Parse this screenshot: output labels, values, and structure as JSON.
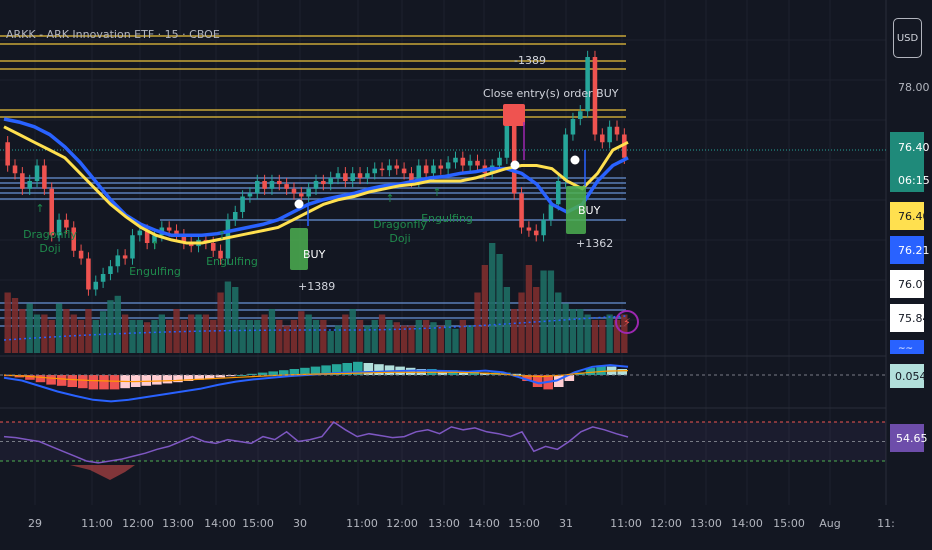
{
  "header": {
    "title": "ARKK - ARK Innovation ETF · 15 · CBOE",
    "currency": "USD"
  },
  "price_axis": {
    "static_label": "78.00",
    "current_price": "76.40",
    "countdown": "06:15",
    "labels": [
      {
        "text": "76.40",
        "bg": "#ffe04f",
        "fg": "#131722"
      },
      {
        "text": "76.21",
        "bg": "#2962ff",
        "fg": "#ffffff"
      },
      {
        "text": "76.07",
        "bg": "#ffffff",
        "fg": "#131722"
      },
      {
        "text": "75.84",
        "bg": "#ffffff",
        "fg": "#131722"
      }
    ],
    "truncated_label": "~~",
    "macd_label": "0.0546",
    "rsi_label": "54.65"
  },
  "x_axis": [
    "29",
    "11:00",
    "12:00",
    "13:00",
    "14:00",
    "15:00",
    "30",
    "11:00",
    "12:00",
    "13:00",
    "14:00",
    "15:00",
    "31",
    "11:00",
    "12:00",
    "13:00",
    "14:00",
    "15:00",
    "Aug",
    "11:"
  ],
  "annotations": {
    "sell_qty": "-1389",
    "close_text": "Close entry(s) order BUY",
    "buy_label": "BUY",
    "buy1_qty": "+1389",
    "buy2_qty": "+1362",
    "patterns": [
      "Dragonfly Doji",
      "Engulfing",
      "Engulfing",
      "Dragonfly Doji",
      "Engulfing"
    ]
  },
  "colors": {
    "up": "#26a69a",
    "down": "#ef5350",
    "ema_fast": "#ffe04f",
    "ema_slow": "#2962ff",
    "rsi": "#7e57c2",
    "bg": "#131722"
  },
  "chart_data": [
    {
      "type": "candlestick",
      "title": "ARKK - ARK Innovation ETF · 15 · CBOE",
      "y_axis_labels": [
        "78.00",
        "76.40",
        "76.21",
        "76.07",
        "75.84"
      ],
      "x_ticks": [
        "29",
        "11:00",
        "12:00",
        "13:00",
        "14:00",
        "15:00",
        "30",
        "11:00",
        "12:00",
        "13:00",
        "14:00",
        "15:00",
        "31",
        "11:00",
        "12:00",
        "13:00",
        "14:00",
        "15:00",
        "Aug",
        "11:"
      ],
      "close": [
        76.3,
        76.25,
        76.15,
        76.2,
        76.3,
        76.15,
        75.85,
        75.95,
        75.9,
        75.75,
        75.7,
        75.5,
        75.55,
        75.6,
        75.65,
        75.72,
        75.7,
        75.85,
        75.88,
        75.8,
        75.85,
        75.9,
        75.88,
        75.85,
        75.8,
        75.78,
        75.82,
        75.8,
        75.75,
        75.7,
        75.95,
        76.0,
        76.1,
        76.12,
        76.2,
        76.15,
        76.2,
        76.18,
        76.15,
        76.12,
        76.1,
        76.15,
        76.2,
        76.18,
        76.22,
        76.25,
        76.2,
        76.25,
        76.22,
        76.25,
        76.28,
        76.27,
        76.3,
        76.28,
        76.25,
        76.2,
        76.3,
        76.25,
        76.3,
        76.28,
        76.32,
        76.35,
        76.3,
        76.33,
        76.3,
        76.25,
        76.3,
        76.35,
        76.6,
        76.12,
        75.9,
        75.88,
        75.85,
        75.95,
        76.05,
        76.2,
        76.5,
        76.6,
        76.65,
        77.0,
        76.5,
        76.45,
        76.55,
        76.5,
        76.35
      ],
      "ema_fast": [
        76.55,
        76.5,
        76.45,
        76.4,
        76.35,
        76.25,
        76.15,
        76.05,
        75.97,
        75.9,
        75.85,
        75.82,
        75.8,
        75.8,
        75.82,
        75.84,
        75.86,
        75.88,
        75.9,
        75.95,
        76.0,
        76.05,
        76.08,
        76.1,
        76.13,
        76.15,
        76.17,
        76.18,
        76.2,
        76.2,
        76.2,
        76.22,
        76.25,
        76.28,
        76.3,
        76.3,
        76.28,
        76.2,
        76.15,
        76.25,
        76.4,
        76.45
      ],
      "ema_slow": [
        76.6,
        76.58,
        76.55,
        76.5,
        76.42,
        76.32,
        76.2,
        76.08,
        75.98,
        75.92,
        75.88,
        75.85,
        75.85,
        75.85,
        75.86,
        75.88,
        75.9,
        75.92,
        75.95,
        76.0,
        76.05,
        76.08,
        76.1,
        76.12,
        76.15,
        76.17,
        76.18,
        76.2,
        76.22,
        76.23,
        76.25,
        76.26,
        76.28,
        76.28,
        76.25,
        76.18,
        76.05,
        76.0,
        76.05,
        76.2,
        76.3,
        76.35
      ],
      "trades": [
        {
          "side": "BUY",
          "qty": "+1389"
        },
        {
          "side": "SELL",
          "qty": "-1389"
        },
        {
          "side": "BUY",
          "qty": "+1362"
        }
      ]
    },
    {
      "type": "bar",
      "title": "Volume",
      "values": [
        55,
        50,
        40,
        45,
        35,
        35,
        30,
        45,
        40,
        35,
        30,
        40,
        30,
        38,
        48,
        52,
        35,
        30,
        30,
        28,
        30,
        35,
        30,
        40,
        30,
        35,
        35,
        35,
        30,
        55,
        65,
        60,
        30,
        30,
        30,
        35,
        40,
        30,
        25,
        30,
        38,
        35,
        30,
        30,
        20,
        25,
        35,
        40,
        30,
        25,
        30,
        35,
        30,
        28,
        25,
        25,
        30,
        30,
        28,
        25,
        30,
        22,
        30,
        25,
        55,
        80,
        100,
        90,
        60,
        40,
        55,
        80,
        60,
        75,
        75,
        55,
        45,
        40,
        40,
        35,
        30,
        30,
        35,
        30,
        35
      ]
    },
    {
      "type": "bar",
      "title": "MACD",
      "y_axis_labels": [
        "0.0546"
      ],
      "histogram": [
        -0.01,
        -0.02,
        -0.04,
        -0.06,
        -0.08,
        -0.09,
        -0.1,
        -0.11,
        -0.12,
        -0.12,
        -0.12,
        -0.11,
        -0.1,
        -0.09,
        -0.08,
        -0.07,
        -0.06,
        -0.05,
        -0.04,
        -0.03,
        -0.02,
        -0.01,
        0.0,
        0.01,
        0.02,
        0.03,
        0.04,
        0.05,
        0.06,
        0.07,
        0.08,
        0.09,
        0.1,
        0.11,
        0.1,
        0.09,
        0.08,
        0.07,
        0.06,
        0.05,
        0.05,
        0.04,
        0.04,
        0.03,
        0.03,
        0.02,
        0.02,
        0.02,
        0.01,
        -0.05,
        -0.1,
        -0.12,
        -0.1,
        -0.05,
        0.02,
        0.06,
        0.08,
        0.07,
        0.05
      ],
      "macd_line": [
        -0.05,
        -0.1,
        -0.2,
        -0.3,
        -0.38,
        -0.45,
        -0.48,
        -0.45,
        -0.4,
        -0.35,
        -0.3,
        -0.25,
        -0.18,
        -0.12,
        -0.08,
        -0.05,
        -0.02,
        0.0,
        0.02,
        0.04,
        0.05,
        0.06,
        0.07,
        0.08,
        0.08,
        0.07,
        0.06,
        0.08,
        0.05,
        -0.05,
        -0.15,
        -0.1,
        0.05,
        0.15,
        0.18,
        0.15
      ],
      "signal_line": [
        0.0,
        -0.02,
        -0.05,
        -0.08,
        -0.1,
        -0.11,
        -0.12,
        -0.11,
        -0.1,
        -0.08,
        -0.06,
        -0.04,
        -0.02,
        0.0,
        0.01,
        0.02,
        0.03,
        0.04,
        0.05,
        0.05,
        0.05,
        0.05,
        0.04,
        0.02,
        -0.01,
        -0.03,
        0.0,
        0.04,
        0.07,
        0.08
      ]
    },
    {
      "type": "line",
      "title": "RSI",
      "y_axis_labels": [
        "54.65"
      ],
      "values": [
        55,
        54,
        52,
        50,
        45,
        40,
        35,
        30,
        28,
        30,
        32,
        35,
        38,
        42,
        45,
        50,
        55,
        50,
        48,
        52,
        50,
        48,
        55,
        52,
        60,
        50,
        52,
        55,
        70,
        62,
        55,
        58,
        56,
        54,
        55,
        60,
        62,
        58,
        65,
        62,
        64,
        60,
        58,
        55,
        60,
        40,
        45,
        42,
        50,
        60,
        65,
        62,
        58,
        54.65
      ],
      "reference_levels": [
        70,
        50,
        30
      ]
    }
  ]
}
